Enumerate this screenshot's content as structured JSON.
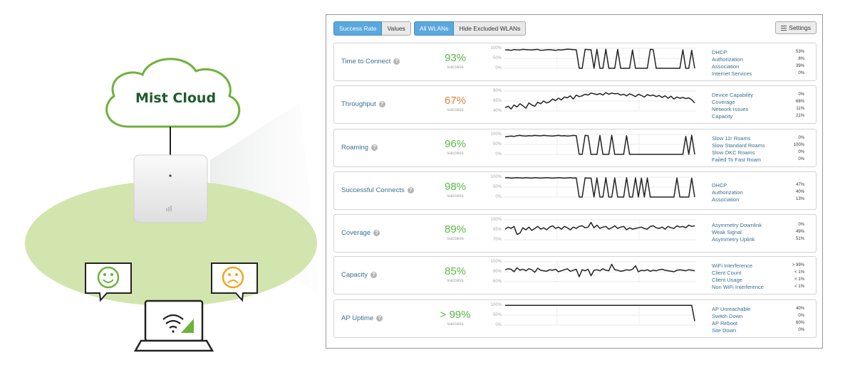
{
  "illustration": {
    "cloud_label": "Mist Cloud",
    "colors": {
      "cloud_border": "#6db23c",
      "ellipse": "#cfe2a8",
      "happy": "#6db23c",
      "sad": "#f2a61c"
    }
  },
  "toolbar": {
    "success_rate": "Success Rate",
    "values": "Values",
    "all_wlans": "All WLANs",
    "hide_excluded": "Hide Excluded WLANs",
    "settings": "Settings"
  },
  "metrics": [
    {
      "name": "Time to Connect",
      "pct": "93%",
      "sub": "success",
      "color": "#5ab846",
      "ticks": [
        "100%",
        "50%",
        "0%"
      ],
      "factors": [
        {
          "label": "DHCP",
          "value": "53%"
        },
        {
          "label": "Authorization",
          "value": "8%"
        },
        {
          "label": "Association",
          "value": "39%"
        },
        {
          "label": "Internet Services",
          "value": "0%"
        }
      ],
      "series": [
        92,
        93,
        90,
        94,
        93,
        92,
        95,
        94,
        93,
        92,
        94,
        95,
        90,
        91,
        93,
        94,
        92,
        90,
        93,
        92,
        94,
        96,
        95,
        94,
        93,
        0,
        0,
        95,
        94,
        93,
        0,
        95,
        0,
        0,
        96,
        0,
        0,
        0,
        95,
        0,
        0,
        0,
        0,
        92,
        0,
        0,
        0,
        0,
        0,
        95,
        94,
        0,
        0,
        0,
        0,
        0,
        0,
        0,
        0,
        0,
        93,
        0,
        0,
        90,
        0
      ]
    },
    {
      "name": "Throughput",
      "pct": "67%",
      "sub": "success",
      "color": "#d9823a",
      "ticks": [
        "90%",
        "65%",
        "40%"
      ],
      "factors": [
        {
          "label": "Device Capability",
          "value": "0%"
        },
        {
          "label": "Coverage",
          "value": "68%"
        },
        {
          "label": "Network Issues",
          "value": "11%"
        },
        {
          "label": "Capacity",
          "value": "21%"
        }
      ],
      "series": [
        48,
        52,
        45,
        55,
        50,
        58,
        53,
        47,
        60,
        55,
        52,
        62,
        58,
        65,
        60,
        63,
        70,
        66,
        72,
        68,
        75,
        73,
        78,
        70,
        80,
        76,
        78,
        82,
        80,
        85,
        83,
        81,
        84,
        80,
        86,
        82,
        85,
        83,
        84,
        80,
        82,
        78,
        83,
        80,
        76,
        82,
        79,
        75,
        81,
        78,
        80,
        76,
        79,
        74,
        78,
        72,
        77,
        70,
        75,
        72,
        74,
        71,
        73,
        68,
        60
      ]
    },
    {
      "name": "Roaming",
      "pct": "96%",
      "sub": "success",
      "color": "#5ab846",
      "ticks": [
        "100%",
        "50%",
        "0%"
      ],
      "factors": [
        {
          "label": "Slow 11r Roams",
          "value": "0%"
        },
        {
          "label": "Slow Standard Roams",
          "value": "100%"
        },
        {
          "label": "Slow OKC Roams",
          "value": "0%"
        },
        {
          "label": "Failed To Fast Roam",
          "value": "0%"
        }
      ],
      "series": [
        88,
        90,
        92,
        90,
        94,
        95,
        93,
        92,
        94,
        93,
        95,
        94,
        93,
        95,
        94,
        93,
        92,
        94,
        95,
        93,
        94,
        92,
        93,
        95,
        94,
        0,
        0,
        95,
        94,
        0,
        0,
        0,
        95,
        0,
        0,
        0,
        96,
        0,
        0,
        0,
        0,
        94,
        0,
        0,
        0,
        0,
        0,
        0,
        0,
        0,
        0,
        0,
        0,
        0,
        0,
        0,
        0,
        0,
        0,
        0,
        0,
        90,
        0,
        96,
        0
      ]
    },
    {
      "name": "Successful Connects",
      "pct": "98%",
      "sub": "success",
      "color": "#5ab846",
      "ticks": [
        "100%",
        "50%",
        "0%"
      ],
      "factors": [
        {
          "label": "DHCP",
          "value": "47%"
        },
        {
          "label": "Authorization",
          "value": "40%"
        },
        {
          "label": "Association",
          "value": "13%"
        }
      ],
      "series": [
        96,
        97,
        95,
        96,
        97,
        96,
        95,
        97,
        96,
        95,
        97,
        96,
        95,
        96,
        97,
        96,
        95,
        96,
        97,
        96,
        95,
        96,
        97,
        95,
        96,
        0,
        0,
        96,
        95,
        95,
        0,
        96,
        0,
        0,
        97,
        0,
        0,
        96,
        0,
        0,
        0,
        97,
        0,
        0,
        96,
        0,
        95,
        0,
        96,
        0,
        0,
        0,
        0,
        0,
        0,
        0,
        0,
        0,
        96,
        0,
        0,
        0,
        0,
        95,
        0
      ]
    },
    {
      "name": "Coverage",
      "pct": "89%",
      "sub": "success",
      "color": "#5ab846",
      "ticks": [
        "100%",
        "85%",
        "70%"
      ],
      "factors": [
        {
          "label": "Asymmetry Downlink",
          "value": "0%"
        },
        {
          "label": "Weak Signal",
          "value": "49%"
        },
        {
          "label": "Asymmetry Uplink",
          "value": "51%"
        }
      ],
      "series": [
        86,
        89,
        87,
        90,
        78,
        80,
        88,
        85,
        89,
        84,
        87,
        90,
        86,
        88,
        85,
        89,
        91,
        87,
        89,
        86,
        90,
        88,
        85,
        89,
        87,
        90,
        91,
        88,
        89,
        96,
        88,
        92,
        87,
        89,
        90,
        86,
        88,
        91,
        87,
        89,
        90,
        85,
        88,
        86,
        87,
        88,
        89,
        87,
        86,
        90,
        91,
        88,
        87,
        89,
        86,
        90,
        88,
        87,
        91,
        89,
        90,
        88,
        92,
        90,
        91
      ]
    },
    {
      "name": "Capacity",
      "pct": "85%",
      "sub": "success",
      "color": "#5ab846",
      "ticks": [
        "100%",
        "80%",
        "60%"
      ],
      "factors": [
        {
          "label": "WiFi Interference",
          "value": "> 99%"
        },
        {
          "label": "Client Count",
          "value": "< 1%"
        },
        {
          "label": "Client Usage",
          "value": "< 1%"
        },
        {
          "label": "Non WiFi Interference",
          "value": "< 1%"
        }
      ],
      "series": [
        84,
        86,
        85,
        80,
        88,
        83,
        85,
        82,
        86,
        84,
        79,
        87,
        83,
        82,
        81,
        84,
        83,
        85,
        80,
        82,
        84,
        86,
        81,
        83,
        85,
        70,
        84,
        82,
        85,
        72,
        83,
        84,
        82,
        86,
        83,
        82,
        95,
        84,
        83,
        81,
        82,
        84,
        83,
        85,
        92,
        80,
        83,
        82,
        84,
        81,
        83,
        82,
        84,
        85,
        83,
        82,
        81,
        80,
        83,
        84,
        83,
        82,
        84,
        83,
        82
      ]
    },
    {
      "name": "AP Uptime",
      "pct": "> 99%",
      "sub": "success",
      "color": "#5ab846",
      "ticks": [
        "100%",
        "50%",
        "0%"
      ],
      "factors": [
        {
          "label": "AP Unreachable",
          "value": "40%"
        },
        {
          "label": "Switch Down",
          "value": "0%"
        },
        {
          "label": "AP Reboot",
          "value": "60%"
        },
        {
          "label": "Site Down",
          "value": "0%"
        }
      ],
      "series": [
        99,
        99,
        99,
        99,
        99,
        99,
        99,
        99,
        99,
        99,
        99,
        99,
        99,
        99,
        99,
        99,
        99,
        99,
        99,
        99,
        99,
        99,
        99,
        99,
        99,
        99,
        99,
        99,
        99,
        99,
        99,
        99,
        99,
        99,
        99,
        99,
        99,
        99,
        99,
        99,
        99,
        99,
        99,
        99,
        99,
        99,
        99,
        99,
        99,
        99,
        99,
        99,
        99,
        99,
        99,
        99,
        99,
        99,
        99,
        99,
        99,
        99,
        99,
        99,
        20
      ]
    }
  ]
}
